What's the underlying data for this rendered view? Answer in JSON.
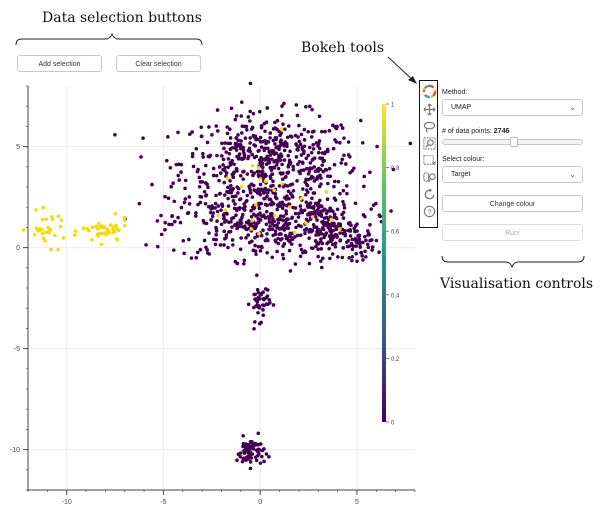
{
  "annotations": {
    "data_selection": "Data selection buttons",
    "bokeh_tools": "Bokeh tools",
    "visualisation_controls": "Visualisation controls"
  },
  "buttons": {
    "add_selection": "Add selection",
    "clear_selection": "Clear selection",
    "change_colour": "Change colour",
    "run": "Run!"
  },
  "controls": {
    "method_label": "Method:",
    "method_value": "UMAP",
    "points_label": "# of data points:",
    "points_value": "2746",
    "slider_fraction": 0.5,
    "colour_label": "Select colour:",
    "colour_value": "Target"
  },
  "toolbar": {
    "tools": [
      "bokeh-logo-icon",
      "pan-icon",
      "lasso-select-icon",
      "box-zoom-icon",
      "box-select-icon",
      "wheel-zoom-icon",
      "reset-icon",
      "help-icon"
    ]
  },
  "colors": {
    "viridis_low": "#440154",
    "viridis_mid": "#21918c",
    "viridis_high": "#fde725",
    "gold": "#f5d90a"
  },
  "chart_data": {
    "type": "scatter",
    "x_ticks": [
      -10,
      -5,
      0,
      5
    ],
    "y_ticks": [
      -10,
      -5,
      0,
      5
    ],
    "xlim": [
      -12,
      8
    ],
    "ylim": [
      -12,
      8
    ],
    "colorbar": {
      "range": [
        0,
        1
      ],
      "ticks": [
        "0",
        "0.2",
        "0.4",
        "0.6",
        "0.8",
        "1"
      ]
    },
    "clusters": [
      {
        "target": 1,
        "cx": -11.0,
        "cy": 0.9,
        "sx": 0.5,
        "sy": 0.4,
        "n": 30
      },
      {
        "target": 1,
        "cx": -8.0,
        "cy": 0.8,
        "sx": 0.6,
        "sy": 0.3,
        "n": 45
      },
      {
        "target": 0,
        "cx": 0.5,
        "cy": 4.2,
        "sx": 2.3,
        "sy": 1.2,
        "n": 550
      },
      {
        "target": 0,
        "cx": 0.3,
        "cy": 1.2,
        "sx": 2.5,
        "sy": 0.9,
        "n": 420
      },
      {
        "target": 0,
        "cx": 3.5,
        "cy": 0.9,
        "sx": 0.7,
        "sy": 0.6,
        "n": 110
      },
      {
        "target": 0,
        "cx": 5.1,
        "cy": 0.2,
        "sx": 0.4,
        "sy": 0.4,
        "n": 50
      },
      {
        "target": 0,
        "cx": 0.0,
        "cy": -2.7,
        "sx": 0.25,
        "sy": 0.45,
        "n": 45
      },
      {
        "target": 0,
        "cx": -0.5,
        "cy": -10.1,
        "sx": 0.35,
        "sy": 0.35,
        "n": 70
      },
      {
        "target": 1,
        "cx": 0.5,
        "cy": 2.0,
        "sx": 2.0,
        "sy": 1.5,
        "n": 25
      }
    ]
  }
}
